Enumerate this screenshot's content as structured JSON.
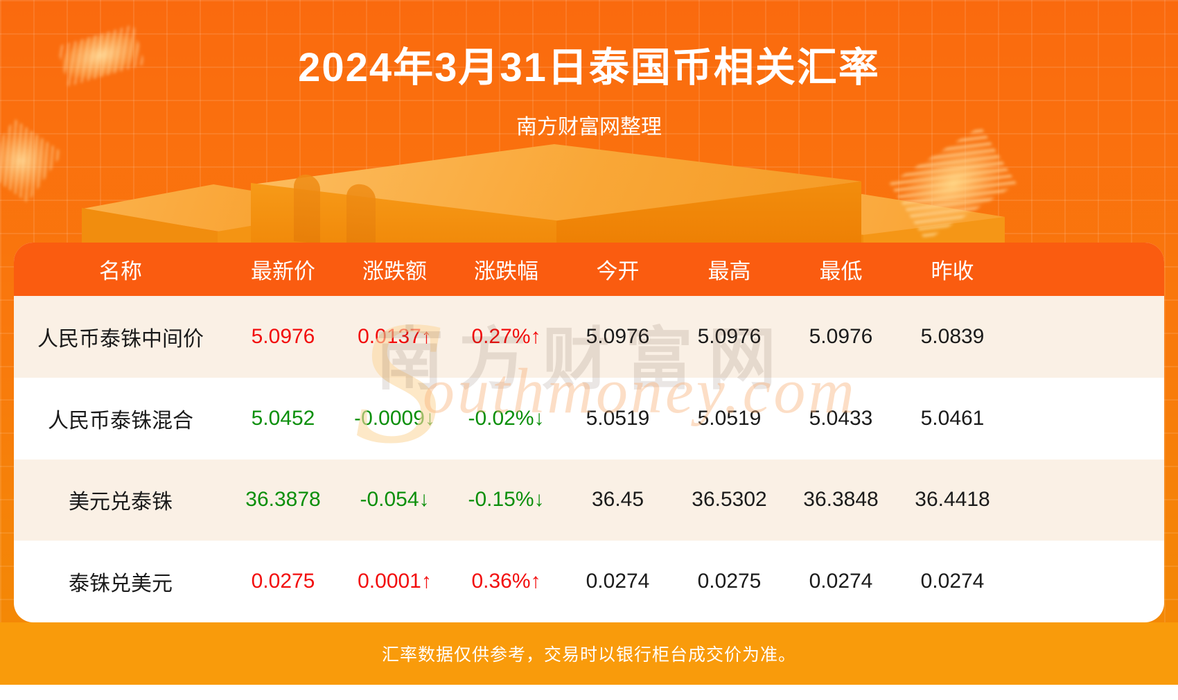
{
  "page": {
    "title": "2024年3月31日泰国币相关汇率",
    "subtitle": "南方财富网整理",
    "footer_note": "汇率数据仅供参考，交易时以银行柜台成交价为准。"
  },
  "watermark": {
    "cn": "南方财富网",
    "en_initial": "S",
    "en_rest": "outhmoney.com"
  },
  "colors": {
    "background_orange": "#f97a0d",
    "header_bg": "#fa5c10",
    "row_alt_bg": "#faf0e5",
    "row_bg": "#ffffff",
    "up_red": "#f20d0d",
    "down_green": "#0b8f0b",
    "value_black": "#1b1b1b",
    "footer_bg": "#f99b0b",
    "text_white": "#ffffff"
  },
  "table": {
    "columns": [
      "名称",
      "最新价",
      "涨跌额",
      "涨跌幅",
      "今开",
      "最高",
      "最低",
      "昨收"
    ],
    "rows": [
      {
        "name": "人民币泰铢中间价",
        "last": "5.0976",
        "change": "0.0137↑",
        "pct": "0.27%↑",
        "open": "5.0976",
        "high": "5.0976",
        "low": "5.0976",
        "prev": "5.0839",
        "trend": "up"
      },
      {
        "name": "人民币泰铢混合",
        "last": "5.0452",
        "change": "-0.0009↓",
        "pct": "-0.02%↓",
        "open": "5.0519",
        "high": "5.0519",
        "low": "5.0433",
        "prev": "5.0461",
        "trend": "down"
      },
      {
        "name": "美元兑泰铢",
        "last": "36.3878",
        "change": "-0.054↓",
        "pct": "-0.15%↓",
        "open": "36.45",
        "high": "36.5302",
        "low": "36.3848",
        "prev": "36.4418",
        "trend": "down"
      },
      {
        "name": "泰铢兑美元",
        "last": "0.0275",
        "change": "0.0001↑",
        "pct": "0.36%↑",
        "open": "0.0274",
        "high": "0.0275",
        "low": "0.0274",
        "prev": "0.0274",
        "trend": "up"
      }
    ]
  },
  "chart_data": {
    "type": "table",
    "title": "2024年3月31日泰国币相关汇率",
    "subtitle": "南方财富网整理",
    "columns": [
      "名称",
      "最新价",
      "涨跌额",
      "涨跌幅",
      "今开",
      "最高",
      "最低",
      "昨收"
    ],
    "rows": [
      [
        "人民币泰铢中间价",
        "5.0976",
        "0.0137↑",
        "0.27%↑",
        "5.0976",
        "5.0976",
        "5.0976",
        "5.0839"
      ],
      [
        "人民币泰铢混合",
        "5.0452",
        "-0.0009↓",
        "-0.02%↓",
        "5.0519",
        "5.0519",
        "5.0433",
        "5.0461"
      ],
      [
        "美元兑泰铢",
        "36.3878",
        "-0.054↓",
        "-0.15%↓",
        "36.45",
        "36.5302",
        "36.3848",
        "36.4418"
      ],
      [
        "泰铢兑美元",
        "0.0275",
        "0.0001↑",
        "0.36%↑",
        "0.0274",
        "0.0275",
        "0.0274",
        "0.0274"
      ]
    ],
    "footnote": "汇率数据仅供参考，交易时以银行柜台成交价为准。"
  }
}
